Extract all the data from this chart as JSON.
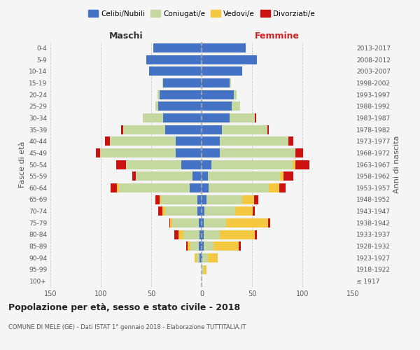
{
  "age_groups": [
    "100+",
    "95-99",
    "90-94",
    "85-89",
    "80-84",
    "75-79",
    "70-74",
    "65-69",
    "60-64",
    "55-59",
    "50-54",
    "45-49",
    "40-44",
    "35-39",
    "30-34",
    "25-29",
    "20-24",
    "15-19",
    "10-14",
    "5-9",
    "0-4"
  ],
  "birth_years": [
    "≤ 1917",
    "1918-1922",
    "1923-1927",
    "1928-1932",
    "1933-1937",
    "1938-1942",
    "1943-1947",
    "1948-1952",
    "1953-1957",
    "1958-1962",
    "1963-1967",
    "1968-1972",
    "1973-1977",
    "1978-1982",
    "1983-1987",
    "1988-1992",
    "1993-1997",
    "1998-2002",
    "2003-2007",
    "2008-2012",
    "2013-2017"
  ],
  "colors": {
    "celibi": "#4472C4",
    "coniugati": "#C5D8A0",
    "vedovi": "#F5C842",
    "divorziati": "#CC1111"
  },
  "males": {
    "celibi": [
      0,
      0,
      2,
      3,
      2,
      3,
      4,
      4,
      12,
      9,
      20,
      26,
      26,
      36,
      38,
      43,
      42,
      38,
      52,
      55,
      48
    ],
    "coniugati": [
      0,
      0,
      3,
      8,
      16,
      26,
      32,
      36,
      70,
      56,
      55,
      75,
      65,
      42,
      20,
      3,
      2,
      1,
      0,
      0,
      0
    ],
    "vedovi": [
      0,
      0,
      2,
      3,
      5,
      2,
      3,
      2,
      2,
      0,
      0,
      0,
      0,
      0,
      0,
      0,
      0,
      0,
      0,
      0,
      0
    ],
    "divorziati": [
      0,
      0,
      0,
      1,
      4,
      1,
      4,
      4,
      6,
      4,
      10,
      4,
      5,
      2,
      0,
      0,
      0,
      0,
      0,
      0,
      0
    ]
  },
  "females": {
    "celibi": [
      0,
      0,
      1,
      2,
      2,
      2,
      3,
      5,
      7,
      6,
      10,
      18,
      18,
      20,
      28,
      30,
      32,
      28,
      40,
      55,
      44
    ],
    "coniugati": [
      0,
      2,
      5,
      10,
      16,
      22,
      30,
      35,
      60,
      72,
      80,
      75,
      68,
      45,
      25,
      8,
      3,
      1,
      0,
      0,
      0
    ],
    "vedovi": [
      0,
      3,
      10,
      25,
      35,
      42,
      18,
      12,
      10,
      3,
      3,
      0,
      0,
      0,
      0,
      0,
      0,
      0,
      0,
      0,
      0
    ],
    "divorziati": [
      0,
      0,
      0,
      2,
      2,
      2,
      2,
      4,
      6,
      10,
      14,
      8,
      5,
      2,
      1,
      0,
      0,
      0,
      0,
      0,
      0
    ]
  },
  "xlim": 150,
  "title": "Popolazione per età, sesso e stato civile - 2018",
  "subtitle": "COMUNE DI MELE (GE) - Dati ISTAT 1° gennaio 2018 - Elaborazione TUTTITALIA.IT",
  "ylabel": "Fasce di età",
  "ylabel_right": "Anni di nascita",
  "xlabel_left": "Maschi",
  "xlabel_right": "Femmine",
  "legend_labels": [
    "Celibi/Nubili",
    "Coniugati/e",
    "Vedovi/e",
    "Divorziati/e"
  ],
  "bg_color": "#f5f5f5"
}
